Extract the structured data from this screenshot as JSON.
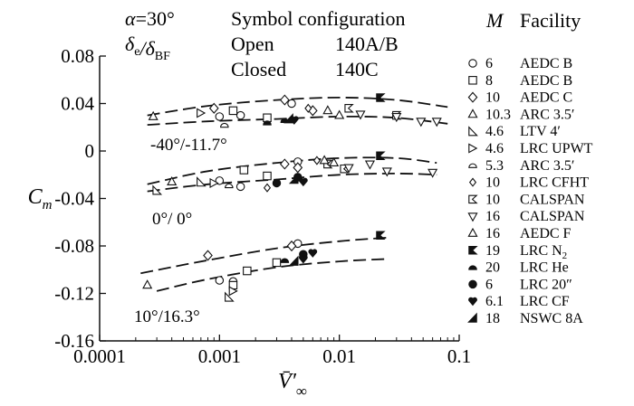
{
  "chart_data": {
    "type": "scatter",
    "x_scale": "log",
    "xlim": [
      0.0001,
      0.1
    ],
    "ylim": [
      -0.16,
      0.08
    ],
    "grid": false,
    "xlabel": "V̄′∞",
    "ylabel": "Cm",
    "x_ticks": [
      {
        "value": 0.0001,
        "label": "0.0001"
      },
      {
        "value": 0.001,
        "label": "0.001"
      },
      {
        "value": 0.01,
        "label": "0.01"
      },
      {
        "value": 0.1,
        "label": "0.1"
      }
    ],
    "y_ticks": [
      {
        "value": 0.08,
        "label": "0.08"
      },
      {
        "value": 0.04,
        "label": "0.04"
      },
      {
        "value": 0,
        "label": "0"
      },
      {
        "value": -0.04,
        "label": "-0.04"
      },
      {
        "value": -0.08,
        "label": "-0.08"
      },
      {
        "value": -0.12,
        "label": "-0.12"
      },
      {
        "value": -0.16,
        "label": "-0.16"
      }
    ],
    "annotations": {
      "alpha": "α=30°",
      "deflection_header": "δe/δBF",
      "symbol_configuration_header": "Symbol configuration",
      "config_rows": [
        {
          "name": "Open",
          "facility": "140A/B"
        },
        {
          "name": "Closed",
          "facility": "140C"
        }
      ],
      "mach_header": "M",
      "facility_header": "Facility"
    },
    "curve_labels": [
      "-40°/-11.7°",
      "0°/ 0°",
      "10°/16.3°"
    ],
    "bounds": [
      {
        "group": "-40°/-11.7°",
        "upper": [
          [
            0.00025,
            0.03
          ],
          [
            0.0008,
            0.038
          ],
          [
            0.003,
            0.043
          ],
          [
            0.01,
            0.045
          ],
          [
            0.03,
            0.043
          ],
          [
            0.08,
            0.037
          ]
        ],
        "lower": [
          [
            0.00025,
            0.022
          ],
          [
            0.0008,
            0.025
          ],
          [
            0.003,
            0.027
          ],
          [
            0.01,
            0.029
          ],
          [
            0.03,
            0.028
          ],
          [
            0.08,
            0.023
          ]
        ]
      },
      {
        "group": "0°/ 0°",
        "upper": [
          [
            0.00025,
            -0.028
          ],
          [
            0.0008,
            -0.017
          ],
          [
            0.003,
            -0.01
          ],
          [
            0.01,
            -0.006
          ],
          [
            0.03,
            -0.006
          ],
          [
            0.065,
            -0.01
          ]
        ],
        "lower": [
          [
            0.00025,
            -0.034
          ],
          [
            0.0008,
            -0.028
          ],
          [
            0.003,
            -0.024
          ],
          [
            0.01,
            -0.02
          ],
          [
            0.03,
            -0.019
          ],
          [
            0.065,
            -0.02
          ]
        ]
      },
      {
        "group": "10°/16.3°",
        "upper": [
          [
            0.00022,
            -0.103
          ],
          [
            0.0008,
            -0.092
          ],
          [
            0.003,
            -0.082
          ],
          [
            0.01,
            -0.076
          ],
          [
            0.025,
            -0.073
          ]
        ],
        "lower": [
          [
            0.0003,
            -0.118
          ],
          [
            0.0008,
            -0.108
          ],
          [
            0.003,
            -0.098
          ],
          [
            0.01,
            -0.093
          ],
          [
            0.025,
            -0.091
          ]
        ]
      }
    ],
    "series": [
      {
        "name": "AEDC B",
        "mach": "6",
        "symbol": "circle",
        "filled": false,
        "points": [
          [
            0.001,
            0.029
          ],
          [
            0.0015,
            0.03
          ],
          [
            0.004,
            0.04
          ],
          [
            0.001,
            -0.025
          ],
          [
            0.0015,
            -0.03
          ],
          [
            0.0045,
            -0.009
          ],
          [
            0.001,
            -0.109
          ],
          [
            0.0045,
            -0.078
          ]
        ]
      },
      {
        "name": "AEDC B",
        "mach": "8",
        "symbol": "square",
        "filled": false,
        "points": [
          [
            0.0013,
            0.034
          ],
          [
            0.0025,
            0.028
          ],
          [
            0.0016,
            -0.016
          ],
          [
            0.0025,
            -0.021
          ],
          [
            0.0013,
            -0.113
          ],
          [
            0.0017,
            -0.101
          ],
          [
            0.003,
            -0.094
          ]
        ]
      },
      {
        "name": "AEDC C",
        "mach": "10",
        "symbol": "diamond",
        "filled": false,
        "points": [
          [
            0.0009,
            0.036
          ],
          [
            0.0035,
            0.043
          ],
          [
            0.006,
            0.034
          ],
          [
            0.0008,
            -0.088
          ],
          [
            0.004,
            -0.08
          ],
          [
            0.0035,
            -0.011
          ],
          [
            0.0045,
            -0.014
          ]
        ]
      },
      {
        "name": "ARC 3.5′",
        "mach": "10.3",
        "symbol": "triangle-up",
        "filled": false,
        "points": [
          [
            0.00028,
            0.029
          ],
          [
            0.0004,
            -0.026
          ],
          [
            0.00025,
            -0.113
          ]
        ]
      },
      {
        "name": "LTV 4′",
        "mach": "4.6",
        "symbol": "triangle-right",
        "filled": false,
        "points": [
          [
            0.0003,
            -0.033
          ],
          [
            0.0007,
            -0.026
          ],
          [
            0.0012,
            -0.123
          ]
        ]
      },
      {
        "name": "LRC UPWT",
        "mach": "4.6",
        "symbol": "triangle-left",
        "filled": false,
        "points": [
          [
            0.0007,
            0.032
          ],
          [
            0.0009,
            -0.027
          ],
          [
            0.0013,
            -0.118
          ]
        ]
      },
      {
        "name": "ARC 3.5′",
        "mach": "5.3",
        "symbol": "half-circle",
        "filled": false,
        "points": [
          [
            0.0011,
            0.022
          ],
          [
            0.0012,
            -0.029
          ],
          [
            0.0013,
            -0.108
          ]
        ]
      },
      {
        "name": "LRC CFHT",
        "mach": "10",
        "symbol": "diamond-small",
        "filled": false,
        "points": [
          [
            0.0055,
            0.036
          ],
          [
            0.0065,
            -0.008
          ],
          [
            0.0025,
            -0.031
          ]
        ]
      },
      {
        "name": "CALSPAN",
        "mach": "10",
        "symbol": "flag",
        "filled": false,
        "points": [
          [
            0.012,
            0.036
          ],
          [
            0.03,
            0.03
          ],
          [
            0.008,
            -0.011
          ],
          [
            0.011,
            -0.015
          ]
        ]
      },
      {
        "name": "CALSPAN",
        "mach": "16",
        "symbol": "triangle-down",
        "filled": false,
        "points": [
          [
            0.015,
            0.031
          ],
          [
            0.03,
            0.029
          ],
          [
            0.048,
            0.025
          ],
          [
            0.065,
            0.025
          ],
          [
            0.012,
            -0.014
          ],
          [
            0.018,
            -0.011
          ],
          [
            0.025,
            -0.017
          ],
          [
            0.06,
            -0.018
          ]
        ]
      },
      {
        "name": "AEDC F",
        "mach": "16",
        "symbol": "triangle-up",
        "filled": false,
        "points": [
          [
            0.008,
            0.034
          ],
          [
            0.01,
            0.03
          ],
          [
            0.0075,
            -0.008
          ],
          [
            0.009,
            -0.01
          ]
        ]
      },
      {
        "name": "LRC N2",
        "mach": "19",
        "symbol": "flag",
        "filled": true,
        "points": [
          [
            0.022,
            0.045
          ],
          [
            0.022,
            -0.004
          ],
          [
            0.022,
            -0.071
          ]
        ]
      },
      {
        "name": "LRC He",
        "mach": "20",
        "symbol": "half-circle",
        "filled": true,
        "points": [
          [
            0.0025,
            0.024
          ],
          [
            0.0035,
            0.026
          ],
          [
            0.0035,
            -0.092
          ]
        ]
      },
      {
        "name": "LRC 20″",
        "mach": "6",
        "symbol": "circle",
        "filled": true,
        "points": [
          [
            0.003,
            -0.027
          ],
          [
            0.0045,
            -0.022
          ],
          [
            0.005,
            -0.087
          ]
        ]
      },
      {
        "name": "LRC CF",
        "mach": "6.1",
        "symbol": "heart",
        "filled": true,
        "points": [
          [
            0.0042,
            0.026
          ],
          [
            0.005,
            -0.026
          ],
          [
            0.005,
            -0.091
          ],
          [
            0.006,
            -0.086
          ]
        ]
      },
      {
        "name": "NSWC 8A",
        "mach": "18",
        "symbol": "triangle-half",
        "filled": true,
        "points": [
          [
            0.0038,
            0.027
          ],
          [
            0.0042,
            -0.024
          ],
          [
            0.0042,
            -0.093
          ]
        ]
      }
    ],
    "legend": {
      "placement": "right",
      "entries": [
        {
          "symbol": "circle",
          "filled": false,
          "mach": "6",
          "facility": "AEDC B"
        },
        {
          "symbol": "square",
          "filled": false,
          "mach": "8",
          "facility": "AEDC B"
        },
        {
          "symbol": "diamond",
          "filled": false,
          "mach": "10",
          "facility": "AEDC C"
        },
        {
          "symbol": "triangle-up",
          "filled": false,
          "mach": "10.3",
          "facility": "ARC 3.5′"
        },
        {
          "symbol": "triangle-right",
          "filled": false,
          "mach": "4.6",
          "facility": "LTV 4′"
        },
        {
          "symbol": "triangle-left",
          "filled": false,
          "mach": "4.6",
          "facility": "LRC UPWT"
        },
        {
          "symbol": "half-circle",
          "filled": false,
          "mach": "5.3",
          "facility": "ARC 3.5′"
        },
        {
          "symbol": "diamond-small",
          "filled": false,
          "mach": "10",
          "facility": "LRC CFHT"
        },
        {
          "symbol": "flag",
          "filled": false,
          "mach": "10",
          "facility": "CALSPAN"
        },
        {
          "symbol": "triangle-down",
          "filled": false,
          "mach": "16",
          "facility": "CALSPAN"
        },
        {
          "symbol": "triangle-up",
          "filled": false,
          "mach": "16",
          "facility": "AEDC F"
        },
        {
          "symbol": "flag",
          "filled": true,
          "mach": "19",
          "facility": "LRC N2"
        },
        {
          "symbol": "half-circle",
          "filled": true,
          "mach": "20",
          "facility": "LRC He"
        },
        {
          "symbol": "circle",
          "filled": true,
          "mach": "6",
          "facility": "LRC 20″"
        },
        {
          "symbol": "heart",
          "filled": true,
          "mach": "6.1",
          "facility": "LRC CF"
        },
        {
          "symbol": "triangle-half",
          "filled": true,
          "mach": "18",
          "facility": "NSWC 8A"
        }
      ]
    }
  }
}
